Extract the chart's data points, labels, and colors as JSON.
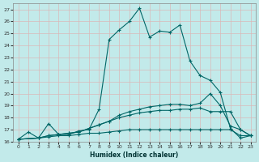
{
  "xlabel": "Humidex (Indice chaleur)",
  "bg_color": "#c2eaea",
  "grid_color": "#d9b8b8",
  "line_color": "#006666",
  "xlim": [
    -0.5,
    23.5
  ],
  "ylim": [
    16,
    27.5
  ],
  "yticks": [
    16,
    17,
    18,
    19,
    20,
    21,
    22,
    23,
    24,
    25,
    26,
    27
  ],
  "xticks": [
    0,
    1,
    2,
    3,
    4,
    5,
    6,
    7,
    8,
    9,
    10,
    11,
    12,
    13,
    14,
    15,
    16,
    17,
    18,
    19,
    20,
    21,
    22,
    23
  ],
  "lines": [
    {
      "x": [
        0,
        1,
        2,
        3,
        4,
        5,
        6,
        7,
        8,
        9,
        10,
        11,
        12,
        13,
        14,
        15,
        16,
        17,
        18,
        19,
        20,
        21,
        22,
        23
      ],
      "y": [
        16.2,
        16.8,
        16.3,
        17.5,
        16.6,
        16.6,
        16.9,
        17.0,
        18.7,
        24.5,
        25.3,
        26.0,
        27.1,
        24.7,
        25.2,
        25.1,
        25.7,
        22.7,
        21.5,
        21.1,
        20.1,
        17.1,
        16.3,
        16.5
      ]
    },
    {
      "x": [
        0,
        2,
        3,
        4,
        5,
        6,
        7,
        8,
        9,
        10,
        11,
        12,
        13,
        14,
        15,
        16,
        17,
        18,
        19,
        20,
        21,
        22,
        23
      ],
      "y": [
        16.2,
        16.3,
        16.5,
        16.6,
        16.7,
        16.8,
        17.1,
        17.4,
        17.7,
        18.0,
        18.2,
        18.4,
        18.5,
        18.6,
        18.6,
        18.7,
        18.7,
        18.8,
        18.5,
        18.5,
        18.5,
        17.0,
        16.5
      ]
    },
    {
      "x": [
        0,
        2,
        3,
        4,
        5,
        6,
        7,
        8,
        9,
        10,
        11,
        12,
        13,
        14,
        15,
        16,
        17,
        18,
        19,
        20,
        21,
        22,
        23
      ],
      "y": [
        16.2,
        16.3,
        16.5,
        16.6,
        16.7,
        16.8,
        17.1,
        17.4,
        17.7,
        18.2,
        18.5,
        18.7,
        18.9,
        19.0,
        19.1,
        19.1,
        19.0,
        19.2,
        20.0,
        19.0,
        17.3,
        17.0,
        16.5
      ]
    },
    {
      "x": [
        0,
        2,
        3,
        4,
        5,
        6,
        7,
        8,
        9,
        10,
        11,
        12,
        13,
        14,
        15,
        16,
        17,
        18,
        19,
        20,
        21,
        22,
        23
      ],
      "y": [
        16.2,
        16.3,
        16.4,
        16.5,
        16.5,
        16.6,
        16.7,
        16.7,
        16.8,
        16.9,
        17.0,
        17.0,
        17.0,
        17.0,
        17.0,
        17.0,
        17.0,
        17.0,
        17.0,
        17.0,
        17.0,
        16.5,
        16.5
      ]
    }
  ]
}
